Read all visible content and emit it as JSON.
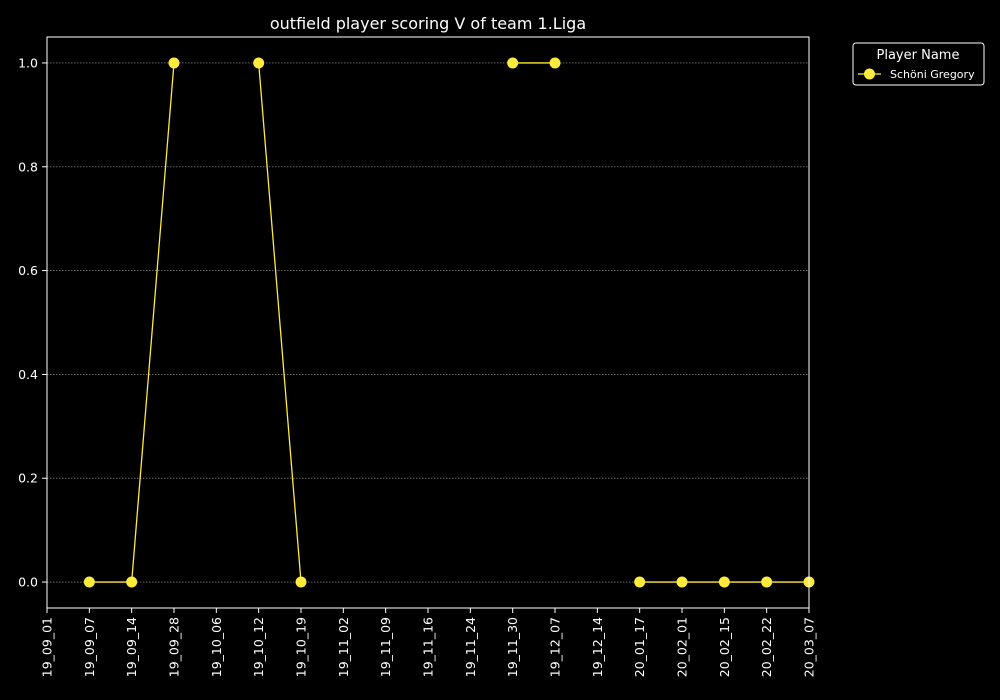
{
  "chart_data": {
    "type": "line",
    "title": "outfield player scoring V of team 1.Liga",
    "xlabel": "",
    "ylabel": "",
    "categories": [
      "19_09_01",
      "19_09_07",
      "19_09_14",
      "19_09_28",
      "19_10_06",
      "19_10_12",
      "19_10_19",
      "19_11_02",
      "19_11_09",
      "19_11_16",
      "19_11_24",
      "19_11_30",
      "19_12_07",
      "19_12_14",
      "20_01_17",
      "20_02_01",
      "20_02_15",
      "20_02_22",
      "20_03_07"
    ],
    "series": [
      {
        "name": "Schöni Gregory",
        "color": "#ffeb3b",
        "values": [
          null,
          0,
          0,
          1,
          null,
          1,
          0,
          null,
          null,
          null,
          null,
          1,
          1,
          null,
          0,
          0,
          0,
          0,
          0
        ]
      }
    ],
    "yticks": [
      0.0,
      0.2,
      0.4,
      0.6,
      0.8,
      1.0
    ],
    "ytick_labels": [
      "0.0",
      "0.2",
      "0.4",
      "0.6",
      "0.8",
      "1.0"
    ],
    "ylim": [
      -0.05,
      1.05
    ],
    "grid": "horizontal-dotted",
    "legend": {
      "title": "Player Name",
      "placement": "outside-top-right"
    },
    "background": "#000000",
    "foreground": "#ffffff"
  }
}
